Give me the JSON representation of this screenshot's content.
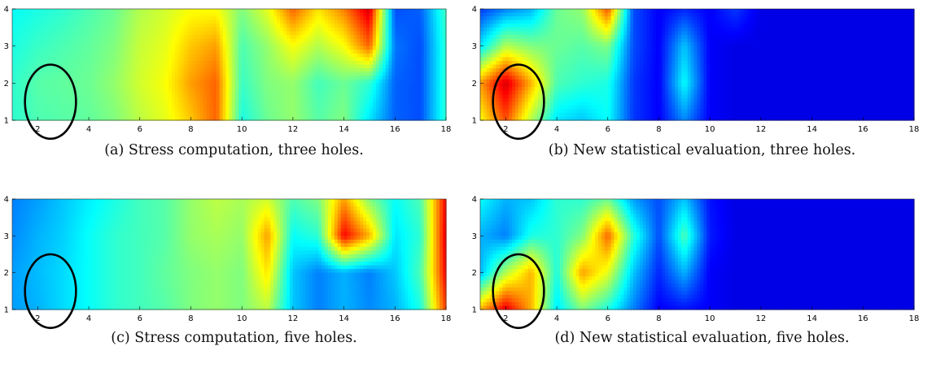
{
  "chart_data": [
    {
      "type": "heatmap",
      "caption": "(a) Stress computation, three holes.",
      "xlim": [
        1,
        18
      ],
      "ylim": [
        1,
        4
      ],
      "xticks": [
        2,
        4,
        6,
        8,
        10,
        12,
        14,
        16,
        18
      ],
      "yticks": [
        1,
        2,
        3,
        4
      ],
      "colormap": "jet",
      "x": [
        1,
        2,
        3,
        4,
        5,
        6,
        7,
        8,
        9,
        10,
        11,
        12,
        13,
        14,
        15,
        16,
        17,
        18
      ],
      "y": [
        1,
        2,
        3,
        4
      ],
      "values": [
        [
          0.42,
          0.45,
          0.46,
          0.47,
          0.5,
          0.56,
          0.6,
          0.68,
          0.78,
          0.4,
          0.48,
          0.52,
          0.46,
          0.5,
          0.35,
          0.22,
          0.2,
          0.42
        ],
        [
          0.42,
          0.46,
          0.47,
          0.48,
          0.52,
          0.58,
          0.62,
          0.72,
          0.78,
          0.43,
          0.5,
          0.52,
          0.44,
          0.48,
          0.42,
          0.22,
          0.2,
          0.42
        ],
        [
          0.4,
          0.43,
          0.45,
          0.47,
          0.5,
          0.57,
          0.6,
          0.68,
          0.72,
          0.45,
          0.52,
          0.62,
          0.55,
          0.62,
          0.78,
          0.24,
          0.2,
          0.42
        ],
        [
          0.38,
          0.4,
          0.42,
          0.45,
          0.48,
          0.55,
          0.58,
          0.62,
          0.62,
          0.5,
          0.6,
          0.78,
          0.65,
          0.75,
          0.92,
          0.2,
          0.22,
          0.44
        ]
      ],
      "ellipse": {
        "cx": 2.5,
        "cy": 1.5,
        "rx": 1.0,
        "ry": 1.0
      }
    },
    {
      "type": "heatmap",
      "caption": "(b) New statistical evaluation, three holes.",
      "xlim": [
        1,
        18
      ],
      "ylim": [
        1,
        4
      ],
      "xticks": [
        2,
        4,
        6,
        8,
        10,
        12,
        14,
        16,
        18
      ],
      "yticks": [
        1,
        2,
        3,
        4
      ],
      "colormap": "jet",
      "x": [
        1,
        2,
        3,
        4,
        5,
        6,
        7,
        8,
        9,
        10,
        11,
        12,
        13,
        14,
        15,
        16,
        17,
        18
      ],
      "y": [
        1,
        2,
        3,
        4
      ],
      "values": [
        [
          0.62,
          0.8,
          0.55,
          0.35,
          0.32,
          0.38,
          0.18,
          0.12,
          0.26,
          0.12,
          0.1,
          0.1,
          0.1,
          0.1,
          0.1,
          0.1,
          0.1,
          0.1
        ],
        [
          0.72,
          0.92,
          0.7,
          0.45,
          0.42,
          0.4,
          0.18,
          0.12,
          0.38,
          0.12,
          0.1,
          0.1,
          0.1,
          0.1,
          0.1,
          0.1,
          0.1,
          0.1
        ],
        [
          0.35,
          0.55,
          0.5,
          0.48,
          0.46,
          0.5,
          0.2,
          0.12,
          0.32,
          0.12,
          0.1,
          0.1,
          0.1,
          0.1,
          0.1,
          0.1,
          0.1,
          0.1
        ],
        [
          0.18,
          0.25,
          0.3,
          0.48,
          0.52,
          0.8,
          0.2,
          0.12,
          0.16,
          0.12,
          0.18,
          0.1,
          0.1,
          0.1,
          0.1,
          0.1,
          0.1,
          0.1
        ]
      ],
      "ellipse": {
        "cx": 2.5,
        "cy": 1.5,
        "rx": 1.0,
        "ry": 1.0
      }
    },
    {
      "type": "heatmap",
      "caption": "(c) Stress computation, five holes.",
      "xlim": [
        1,
        18
      ],
      "ylim": [
        1,
        4
      ],
      "xticks": [
        2,
        4,
        6,
        8,
        10,
        12,
        14,
        16,
        18
      ],
      "yticks": [
        1,
        2,
        3,
        4
      ],
      "colormap": "jet",
      "x": [
        1,
        2,
        3,
        4,
        5,
        6,
        7,
        8,
        9,
        10,
        11,
        12,
        13,
        14,
        15,
        16,
        17,
        18
      ],
      "y": [
        1,
        2,
        3,
        4
      ],
      "values": [
        [
          0.28,
          0.3,
          0.34,
          0.38,
          0.42,
          0.44,
          0.46,
          0.5,
          0.52,
          0.5,
          0.56,
          0.32,
          0.25,
          0.3,
          0.26,
          0.3,
          0.4,
          0.82
        ],
        [
          0.28,
          0.31,
          0.34,
          0.38,
          0.42,
          0.44,
          0.47,
          0.5,
          0.52,
          0.5,
          0.65,
          0.32,
          0.25,
          0.3,
          0.25,
          0.32,
          0.45,
          0.88
        ],
        [
          0.26,
          0.3,
          0.33,
          0.38,
          0.42,
          0.44,
          0.46,
          0.52,
          0.54,
          0.52,
          0.72,
          0.38,
          0.42,
          0.88,
          0.7,
          0.35,
          0.42,
          0.9
        ],
        [
          0.25,
          0.28,
          0.32,
          0.36,
          0.4,
          0.44,
          0.46,
          0.52,
          0.56,
          0.54,
          0.58,
          0.45,
          0.5,
          0.72,
          0.5,
          0.38,
          0.45,
          0.88
        ]
      ],
      "ellipse": {
        "cx": 2.5,
        "cy": 1.5,
        "rx": 1.0,
        "ry": 1.0
      }
    },
    {
      "type": "heatmap",
      "caption": "(d) New statistical evaluation, five holes.",
      "xlim": [
        1,
        18
      ],
      "ylim": [
        1,
        4
      ],
      "xticks": [
        2,
        4,
        6,
        8,
        10,
        12,
        14,
        16,
        18
      ],
      "yticks": [
        1,
        2,
        3,
        4
      ],
      "colormap": "jet",
      "x": [
        1,
        2,
        3,
        4,
        5,
        6,
        7,
        8,
        9,
        10,
        11,
        12,
        13,
        14,
        15,
        16,
        17,
        18
      ],
      "y": [
        1,
        2,
        3,
        4
      ],
      "values": [
        [
          0.7,
          0.9,
          0.7,
          0.35,
          0.5,
          0.4,
          0.25,
          0.12,
          0.14,
          0.12,
          0.1,
          0.1,
          0.1,
          0.1,
          0.1,
          0.1,
          0.1,
          0.1
        ],
        [
          0.3,
          0.55,
          0.7,
          0.4,
          0.72,
          0.6,
          0.32,
          0.16,
          0.3,
          0.12,
          0.1,
          0.1,
          0.1,
          0.1,
          0.1,
          0.1,
          0.1,
          0.1
        ],
        [
          0.3,
          0.25,
          0.4,
          0.42,
          0.5,
          0.78,
          0.42,
          0.2,
          0.45,
          0.15,
          0.1,
          0.1,
          0.1,
          0.1,
          0.1,
          0.1,
          0.1,
          0.1
        ],
        [
          0.38,
          0.3,
          0.32,
          0.42,
          0.42,
          0.48,
          0.28,
          0.2,
          0.32,
          0.14,
          0.1,
          0.1,
          0.1,
          0.1,
          0.1,
          0.1,
          0.1,
          0.1
        ]
      ],
      "ellipse": {
        "cx": 2.5,
        "cy": 1.5,
        "rx": 1.0,
        "ry": 1.0
      }
    }
  ]
}
